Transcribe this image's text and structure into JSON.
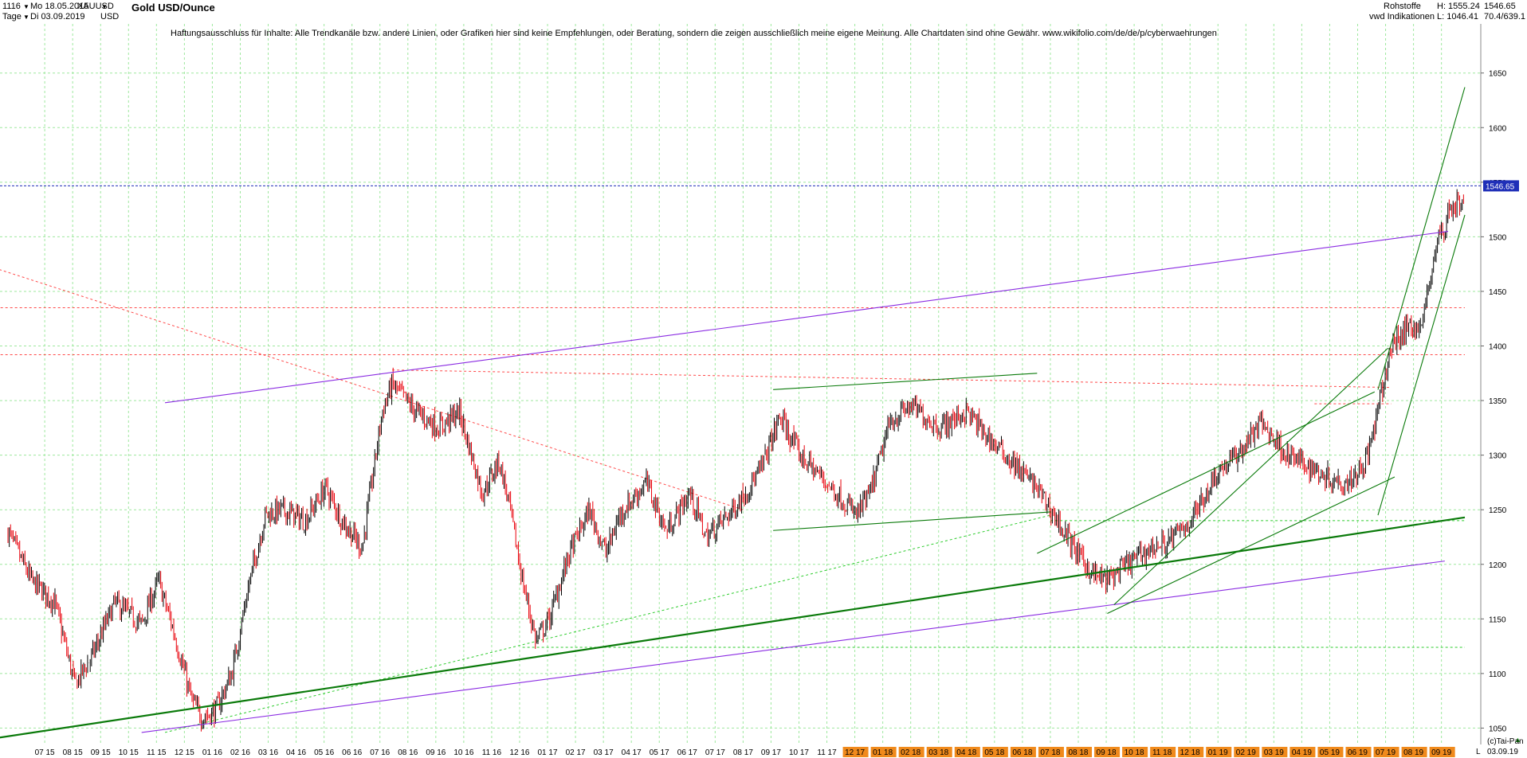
{
  "header": {
    "bar_count": "1116",
    "date_from": "Mo 18.05.2015",
    "symbol": "XAUUSD",
    "period": "Tage",
    "date_to": "Di 03.09.2019",
    "currency": "USD",
    "title": "Gold USD/Ounce",
    "category": "Rohstoffe",
    "source": "vwd Indikationen",
    "high": "H: 1555.24",
    "low": "L: 1046.41",
    "last": "1546.65",
    "ratio": "70.4/639.1"
  },
  "disclaimer": "Haftungsausschluss für Inhalte: Alle Trendkanäle bzw. andere Linien, oder Grafiken hier sind keine Empfehlungen, oder Beratung, sondern die zeigen ausschließlich meine eigene Meinung. Alle Chartdaten sind ohne Gewähr.  www.wikifolio.com/de/de/p/cyberwaehrungen",
  "footer": {
    "credit": "(c)Tai-Pan",
    "date": "03.09.19",
    "l_marker": "L"
  },
  "colors": {
    "candle_up": "#000000",
    "candle_down": "#e8000a",
    "trend_green": "#0a7a0a",
    "trend_purple": "#8a2be2",
    "dotted_red": "#ff4a4a",
    "dotted_green": "#2ecc2e",
    "last_price_line": "#1f2fb8",
    "grid": "#9ee89e",
    "axis_highlight": "#f08a1c"
  },
  "chart_data": {
    "type": "candlestick",
    "title": "Gold USD/Ounce",
    "ylim": [
      1035,
      1695
    ],
    "y_ticks": [
      1050,
      1100,
      1150,
      1200,
      1250,
      1300,
      1350,
      1400,
      1450,
      1500,
      1550,
      1600,
      1650
    ],
    "x_ticks": [
      "07 15",
      "08 15",
      "09 15",
      "10 15",
      "11 15",
      "12 15",
      "01 16",
      "02 16",
      "03 16",
      "04 16",
      "05 16",
      "06 16",
      "07 16",
      "08 16",
      "09 16",
      "10 16",
      "11 16",
      "12 16",
      "01 17",
      "02 17",
      "03 17",
      "04 17",
      "05 17",
      "06 17",
      "07 17",
      "08 17",
      "09 17",
      "10 17",
      "11 17",
      "12 17",
      "01 18",
      "02 18",
      "03 18",
      "04 18",
      "05 18",
      "06 18",
      "07 18",
      "08 18",
      "09 18",
      "10 18",
      "11 18",
      "12 18",
      "01 19",
      "02 19",
      "03 19",
      "04 19",
      "05 19",
      "06 19",
      "07 19",
      "08 19",
      "09 19"
    ],
    "price_path": [
      [
        2015.38,
        1230
      ],
      [
        2015.45,
        1185
      ],
      [
        2015.52,
        1165
      ],
      [
        2015.58,
        1090
      ],
      [
        2015.63,
        1115
      ],
      [
        2015.7,
        1165
      ],
      [
        2015.78,
        1145
      ],
      [
        2015.83,
        1185
      ],
      [
        2015.87,
        1145
      ],
      [
        2015.93,
        1075
      ],
      [
        2015.96,
        1060
      ],
      [
        2016.0,
        1065
      ],
      [
        2016.05,
        1100
      ],
      [
        2016.1,
        1180
      ],
      [
        2016.15,
        1245
      ],
      [
        2016.2,
        1250
      ],
      [
        2016.27,
        1240
      ],
      [
        2016.33,
        1270
      ],
      [
        2016.38,
        1240
      ],
      [
        2016.44,
        1215
      ],
      [
        2016.5,
        1340
      ],
      [
        2016.53,
        1365
      ],
      [
        2016.6,
        1340
      ],
      [
        2016.67,
        1325
      ],
      [
        2016.73,
        1340
      ],
      [
        2016.8,
        1265
      ],
      [
        2016.85,
        1295
      ],
      [
        2016.88,
        1255
      ],
      [
        2016.92,
        1185
      ],
      [
        2016.96,
        1130
      ],
      [
        2017.0,
        1150
      ],
      [
        2017.06,
        1210
      ],
      [
        2017.12,
        1250
      ],
      [
        2017.17,
        1210
      ],
      [
        2017.21,
        1245
      ],
      [
        2017.29,
        1275
      ],
      [
        2017.35,
        1230
      ],
      [
        2017.42,
        1265
      ],
      [
        2017.47,
        1225
      ],
      [
        2017.55,
        1250
      ],
      [
        2017.63,
        1285
      ],
      [
        2017.69,
        1335
      ],
      [
        2017.75,
        1300
      ],
      [
        2017.83,
        1275
      ],
      [
        2017.92,
        1245
      ],
      [
        2017.96,
        1265
      ],
      [
        2018.02,
        1330
      ],
      [
        2018.08,
        1345
      ],
      [
        2018.17,
        1325
      ],
      [
        2018.25,
        1340
      ],
      [
        2018.3,
        1320
      ],
      [
        2018.38,
        1295
      ],
      [
        2018.46,
        1270
      ],
      [
        2018.52,
        1240
      ],
      [
        2018.58,
        1210
      ],
      [
        2018.63,
        1190
      ],
      [
        2018.67,
        1185
      ],
      [
        2018.73,
        1200
      ],
      [
        2018.8,
        1215
      ],
      [
        2018.85,
        1220
      ],
      [
        2018.92,
        1240
      ],
      [
        2019.0,
        1285
      ],
      [
        2019.06,
        1300
      ],
      [
        2019.13,
        1330
      ],
      [
        2019.21,
        1300
      ],
      [
        2019.27,
        1290
      ],
      [
        2019.33,
        1280
      ],
      [
        2019.38,
        1275
      ],
      [
        2019.42,
        1285
      ],
      [
        2019.45,
        1300
      ],
      [
        2019.48,
        1340
      ],
      [
        2019.52,
        1400
      ],
      [
        2019.55,
        1410
      ],
      [
        2019.58,
        1420
      ],
      [
        2019.61,
        1415
      ],
      [
        2019.64,
        1470
      ],
      [
        2019.66,
        1500
      ],
      [
        2019.68,
        1505
      ],
      [
        2019.69,
        1525
      ],
      [
        2019.71,
        1530
      ]
    ],
    "last_price": 1546.65,
    "high": 1555.24,
    "low": 1046.41,
    "trendlines": [
      {
        "color": "green",
        "style": "thick",
        "from": [
          2015.0,
          1025
        ],
        "to": [
          2019.74,
          1243
        ]
      },
      {
        "color": "purple",
        "style": "solid",
        "from": [
          2015.78,
          1046
        ],
        "to": [
          2019.68,
          1203
        ]
      },
      {
        "color": "purple",
        "style": "solid",
        "from": [
          2015.85,
          1348
        ],
        "to": [
          2019.69,
          1505
        ]
      },
      {
        "color": "green",
        "style": "solid",
        "from": [
          2017.67,
          1360
        ],
        "to": [
          2018.46,
          1375
        ]
      },
      {
        "color": "green",
        "style": "solid",
        "from": [
          2017.67,
          1231
        ],
        "to": [
          2018.5,
          1248
        ]
      },
      {
        "color": "green",
        "style": "solid",
        "from": [
          2018.67,
          1155
        ],
        "to": [
          2019.53,
          1280
        ]
      },
      {
        "color": "green",
        "style": "solid",
        "from": [
          2018.69,
          1163
        ],
        "to": [
          2019.51,
          1398
        ]
      },
      {
        "color": "green",
        "style": "solid",
        "from": [
          2018.46,
          1210
        ],
        "to": [
          2019.47,
          1358
        ]
      },
      {
        "color": "green",
        "style": "solid",
        "from": [
          2019.48,
          1360
        ],
        "to": [
          2019.74,
          1637
        ]
      },
      {
        "color": "green",
        "style": "solid",
        "from": [
          2019.48,
          1245
        ],
        "to": [
          2019.74,
          1520
        ]
      }
    ],
    "dotted_lines": [
      {
        "color": "red",
        "from": [
          2015.0,
          1505
        ],
        "to": [
          2017.58,
          1250
        ]
      },
      {
        "color": "red",
        "from": [
          2015.0,
          1435
        ],
        "to": [
          2019.74,
          1435
        ]
      },
      {
        "color": "red",
        "from": [
          2015.0,
          1392
        ],
        "to": [
          2019.74,
          1392
        ]
      },
      {
        "color": "red",
        "from": [
          2016.53,
          1378
        ],
        "to": [
          2019.52,
          1362
        ]
      },
      {
        "color": "red",
        "from": [
          2019.29,
          1347
        ],
        "to": [
          2019.52,
          1347
        ]
      },
      {
        "color": "green",
        "from": [
          2015.85,
          1046
        ],
        "to": [
          2018.5,
          1245
        ]
      },
      {
        "color": "green",
        "from": [
          2016.92,
          1124
        ],
        "to": [
          2019.74,
          1124
        ]
      },
      {
        "color": "green",
        "from": [
          2018.5,
          1240
        ],
        "to": [
          2019.74,
          1240
        ]
      }
    ]
  }
}
